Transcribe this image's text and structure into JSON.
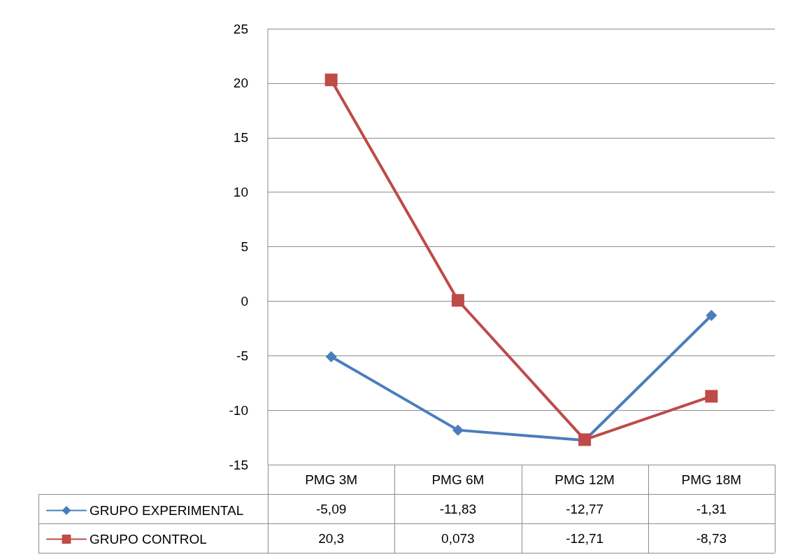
{
  "chart_data": {
    "type": "line",
    "categories": [
      "PMG 3M",
      "PMG 6M",
      "PMG 12M",
      "PMG 18M"
    ],
    "series": [
      {
        "name": "GRUPO EXPERIMENTAL",
        "color": "#4a7ebb",
        "marker": "diamond",
        "values": [
          -5.09,
          -11.83,
          -12.77,
          -1.31
        ],
        "value_labels": [
          "-5,09",
          "-11,83",
          "-12,77",
          "-1,31"
        ]
      },
      {
        "name": "GRUPO CONTROL",
        "color": "#be4b48",
        "marker": "square",
        "values": [
          20.3,
          0.073,
          -12.71,
          -8.73
        ],
        "value_labels": [
          "20,3",
          "0,073",
          "-12,71",
          "-8,73"
        ]
      }
    ],
    "ylim": [
      -15,
      25
    ],
    "yticks": [
      -15,
      -10,
      -5,
      0,
      5,
      10,
      15,
      20,
      25
    ],
    "grid": "y",
    "legend": "bottom left",
    "line_style": "solid"
  }
}
